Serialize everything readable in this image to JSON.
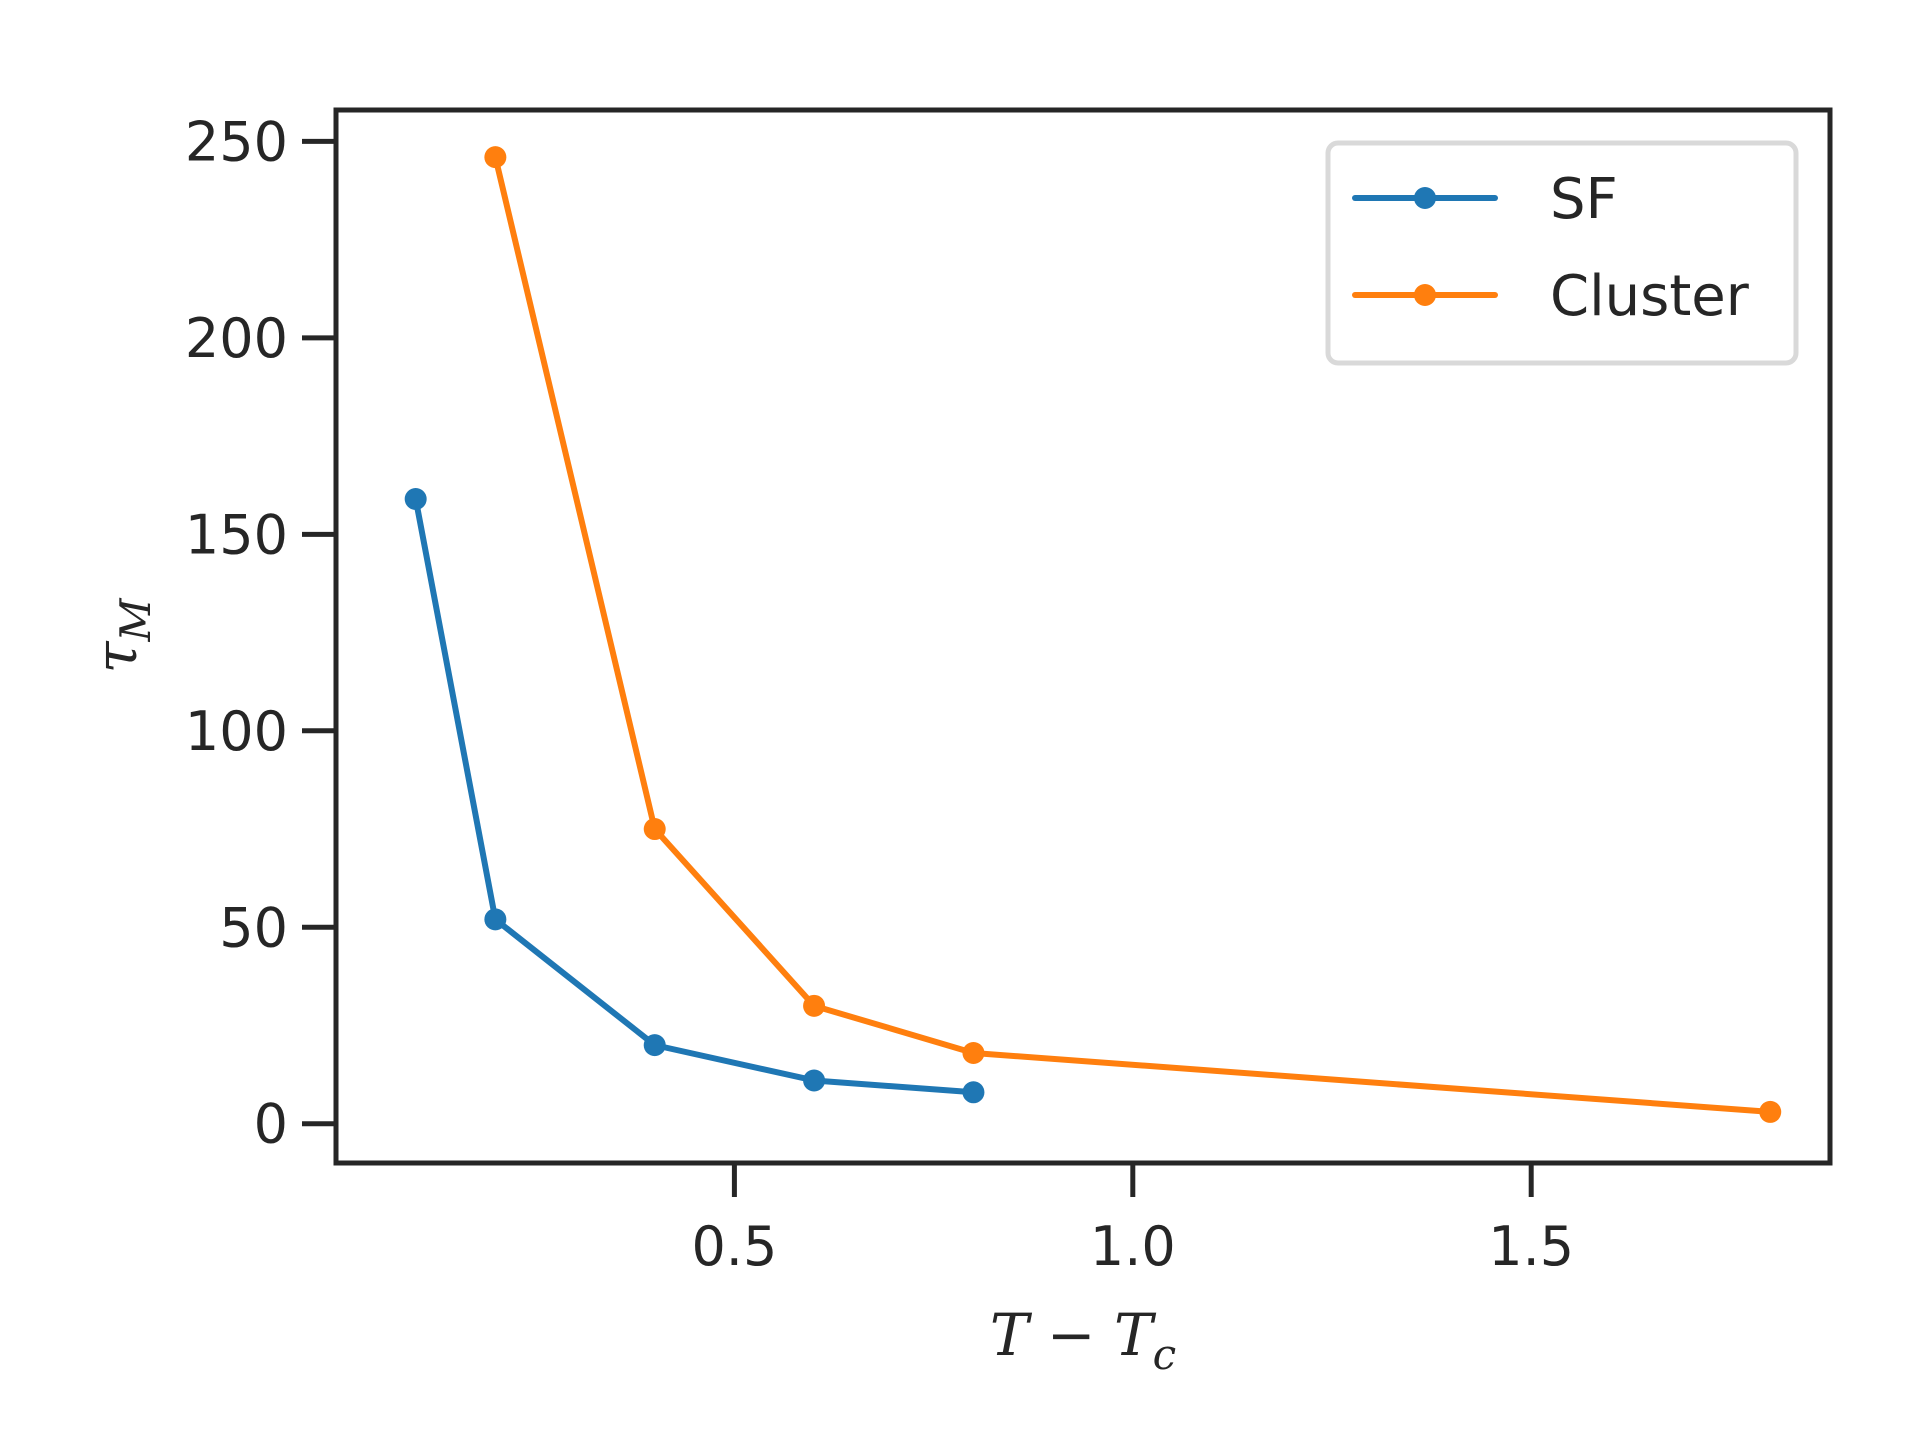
{
  "chart_data": {
    "type": "line",
    "xlabel": "T − T",
    "xlabel_sub": "c",
    "ylabel": "τ",
    "ylabel_sub": "M",
    "xlim": [
      0.0,
      1.875
    ],
    "ylim": [
      -10,
      258
    ],
    "x_ticks": [
      0.5,
      1.0,
      1.5
    ],
    "x_tick_labels": [
      "0.5",
      "1.0",
      "1.5"
    ],
    "y_ticks": [
      0,
      50,
      100,
      150,
      200,
      250
    ],
    "y_tick_labels": [
      "0",
      "50",
      "100",
      "150",
      "200",
      "250"
    ],
    "grid": false,
    "legend_position": "top-right",
    "series": [
      {
        "name": "SF",
        "color": "#1f77b4",
        "marker": "circle",
        "x": [
          0.1,
          0.2,
          0.4,
          0.6,
          0.8
        ],
        "y": [
          159,
          52,
          20,
          11,
          8
        ]
      },
      {
        "name": "Cluster",
        "color": "#ff7f0e",
        "marker": "circle",
        "x": [
          0.2,
          0.4,
          0.6,
          0.8,
          1.8
        ],
        "y": [
          246,
          75,
          30,
          18,
          3
        ]
      }
    ]
  }
}
